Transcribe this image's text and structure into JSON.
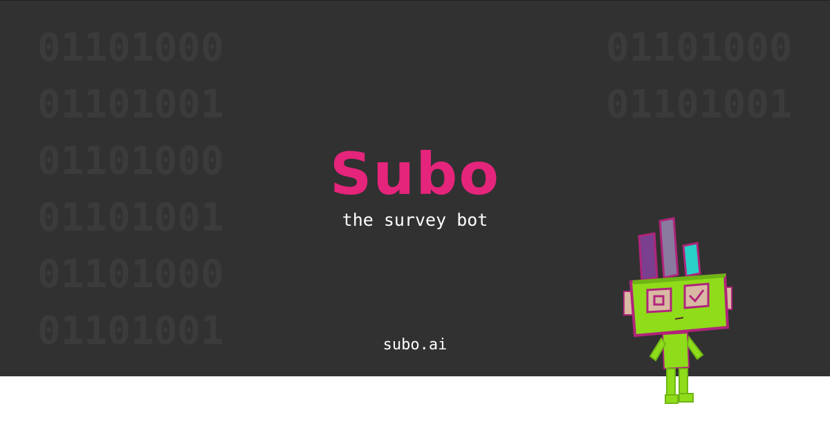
{
  "brand": {
    "name": "Subo",
    "tagline": "the survey bot",
    "website": "subo.ai"
  },
  "background_binary": {
    "left": [
      "01101000",
      "01101001",
      "01101000",
      "01101001",
      "01101000",
      "01101001"
    ],
    "right": [
      "01101000",
      "01101001"
    ]
  },
  "colors": {
    "banner_bg": "#313131",
    "brand_pink": "#e5247b",
    "robot_green": "#8fdc1a",
    "robot_outline": "#b0247a",
    "bar_purple": "#7a3f8f",
    "bar_lavender": "#8a7aa0",
    "bar_teal": "#2ad1c9",
    "eye_panel": "#d9b9a4"
  },
  "mascot": {
    "icon": "robot-mascot-icon"
  }
}
